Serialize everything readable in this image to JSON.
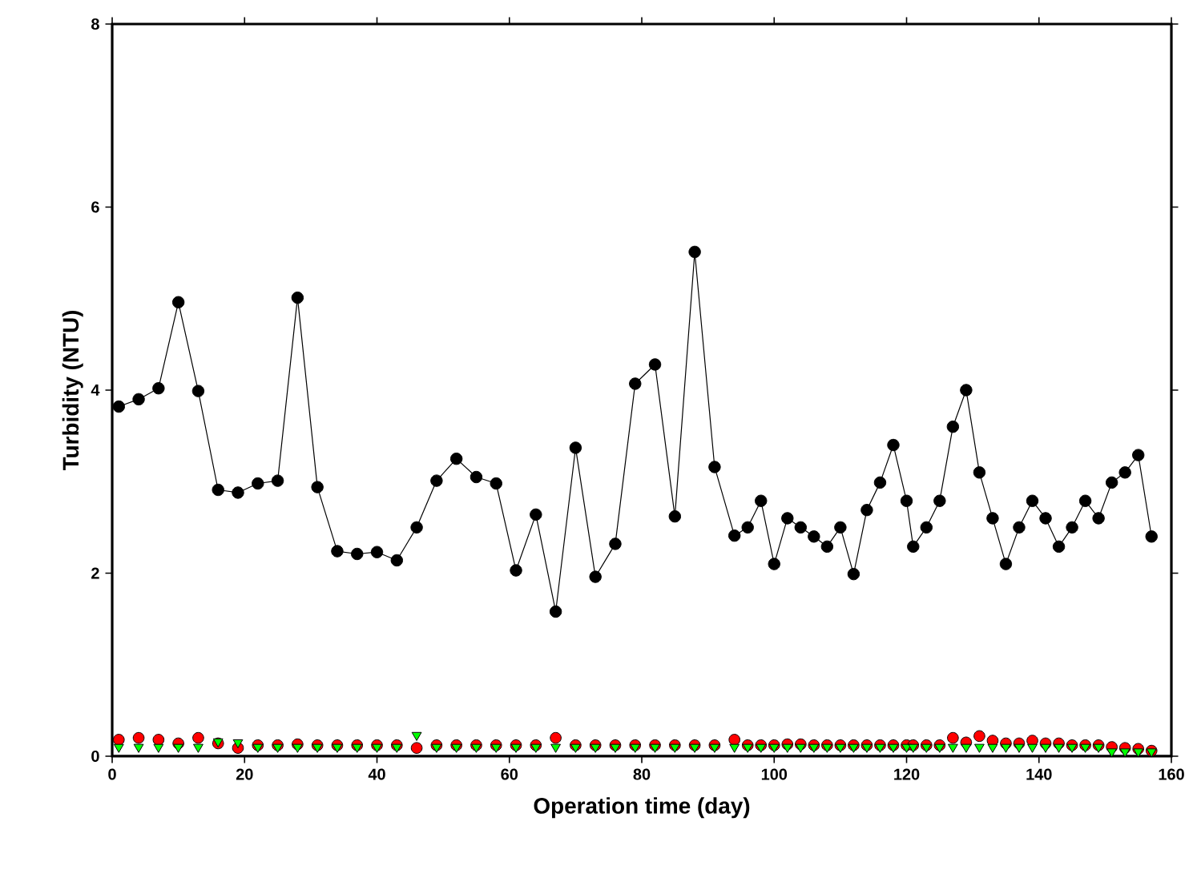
{
  "chart_data": {
    "type": "line",
    "xlabel": "Operation time (day)",
    "ylabel": "Turbidity (NTU)",
    "x": [
      1,
      4,
      7,
      10,
      13,
      16,
      19,
      22,
      25,
      28,
      31,
      34,
      37,
      40,
      43,
      46,
      49,
      52,
      55,
      58,
      61,
      64,
      67,
      70,
      73,
      76,
      79,
      82,
      85,
      88,
      91,
      94,
      96,
      98,
      100,
      102,
      104,
      106,
      108,
      110,
      112,
      114,
      116,
      118,
      120,
      121,
      123,
      125,
      127,
      129,
      131,
      133,
      135,
      137,
      139,
      141,
      143,
      145,
      147,
      149,
      151,
      153,
      155,
      157
    ],
    "series": [
      {
        "color": "#000000",
        "marker": "circle",
        "values": [
          3.82,
          3.9,
          4.02,
          4.96,
          3.99,
          2.91,
          2.88,
          2.98,
          3.01,
          5.01,
          2.94,
          2.24,
          2.21,
          2.23,
          2.14,
          2.5,
          3.01,
          3.25,
          3.05,
          2.98,
          2.03,
          2.64,
          1.58,
          3.37,
          1.96,
          2.32,
          4.07,
          4.28,
          2.62,
          5.51,
          3.16,
          2.41,
          2.5,
          2.79,
          2.1,
          2.6,
          2.5,
          2.4,
          2.29,
          2.5,
          1.99,
          2.69,
          2.99,
          3.4,
          2.79,
          2.29,
          2.5,
          2.79,
          3.6,
          4.0,
          3.1,
          2.6,
          2.1,
          2.5,
          2.79,
          2.6,
          2.29,
          2.5,
          2.79,
          2.6,
          2.99,
          3.1,
          3.29,
          2.4
        ]
      },
      {
        "type": "scatter",
        "color": "#ff0000",
        "marker": "circle",
        "values": [
          0.18,
          0.2,
          0.18,
          0.14,
          0.2,
          0.14,
          0.09,
          0.12,
          0.12,
          0.13,
          0.12,
          0.12,
          0.12,
          0.12,
          0.12,
          0.09,
          0.12,
          0.12,
          0.12,
          0.12,
          0.12,
          0.12,
          0.2,
          0.12,
          0.12,
          0.12,
          0.12,
          0.12,
          0.12,
          0.12,
          0.12,
          0.18,
          0.12,
          0.12,
          0.12,
          0.13,
          0.13,
          0.12,
          0.12,
          0.12,
          0.12,
          0.12,
          0.12,
          0.12,
          0.12,
          0.12,
          0.12,
          0.12,
          0.2,
          0.15,
          0.22,
          0.17,
          0.14,
          0.14,
          0.17,
          0.14,
          0.14,
          0.12,
          0.12,
          0.12,
          0.1,
          0.09,
          0.08,
          0.06
        ]
      },
      {
        "type": "scatter",
        "color": "#00ff00",
        "marker": "triangle",
        "values": [
          0.1,
          0.1,
          0.1,
          0.1,
          0.1,
          0.16,
          0.15,
          0.1,
          0.1,
          0.1,
          0.1,
          0.1,
          0.1,
          0.1,
          0.1,
          0.23,
          0.1,
          0.1,
          0.1,
          0.1,
          0.1,
          0.1,
          0.1,
          0.1,
          0.1,
          0.1,
          0.1,
          0.1,
          0.1,
          0.1,
          0.1,
          0.1,
          0.1,
          0.1,
          0.1,
          0.1,
          0.1,
          0.1,
          0.1,
          0.1,
          0.1,
          0.1,
          0.1,
          0.1,
          0.1,
          0.1,
          0.1,
          0.1,
          0.1,
          0.1,
          0.1,
          0.1,
          0.1,
          0.1,
          0.1,
          0.1,
          0.1,
          0.1,
          0.1,
          0.1,
          0.05,
          0.05,
          0.05,
          0.05
        ]
      }
    ],
    "xlim": [
      0,
      160
    ],
    "xticks": [
      0,
      20,
      40,
      60,
      80,
      100,
      120,
      140,
      160
    ],
    "ylim": [
      0,
      8
    ],
    "yticks": [
      0,
      2,
      4,
      6,
      8
    ]
  }
}
